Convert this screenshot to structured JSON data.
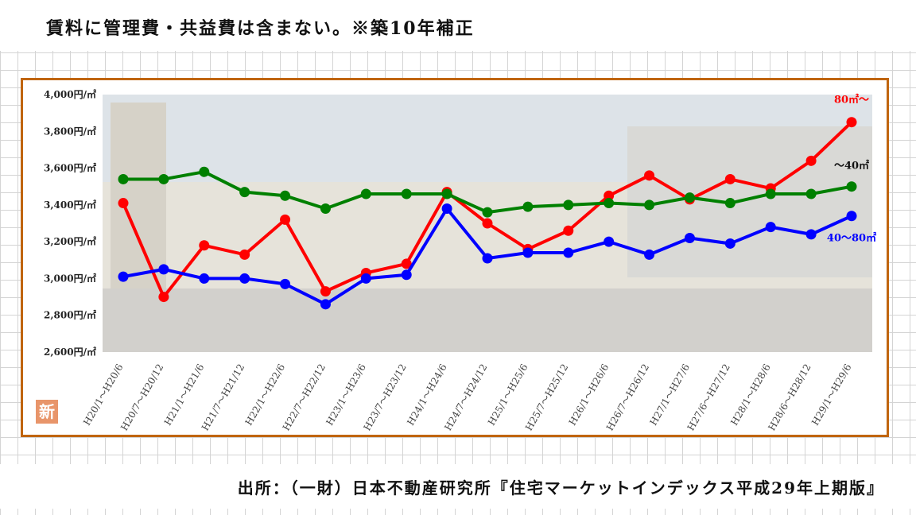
{
  "header": {
    "title": "賃料に管理費・共益費は含まない。※築10年補正"
  },
  "footer": {
    "source": "出所：（一財）日本不動産研究所『住宅マーケットインデックス平成29年上期版』"
  },
  "badge": {
    "text": "新"
  },
  "chart_data": {
    "type": "line",
    "title": "",
    "xlabel": "",
    "ylabel": "",
    "ylim": [
      2600,
      4000
    ],
    "y_ticks": [
      {
        "value": 4000,
        "label": "4,000円/㎡"
      },
      {
        "value": 3800,
        "label": "3,800円/㎡"
      },
      {
        "value": 3600,
        "label": "3,600円/㎡"
      },
      {
        "value": 3400,
        "label": "3,400円/㎡"
      },
      {
        "value": 3200,
        "label": "3,200円/㎡"
      },
      {
        "value": 3000,
        "label": "3,000円/㎡"
      },
      {
        "value": 2800,
        "label": "2,800円/㎡"
      },
      {
        "value": 2600,
        "label": "2,600円/㎡"
      }
    ],
    "categories": [
      "H20/1～H20/6",
      "H20/7～H20/12",
      "H21/1～H21/6",
      "H21/7～H21/12",
      "H22/1～H22/6",
      "H22/7～H22/12",
      "H23/1～H23/6",
      "H23/7～H23/12",
      "H24/1～H24/6",
      "H24/7～H24/12",
      "H25/1～H25/6",
      "H25/7～H25/12",
      "H26/1～H26/6",
      "H26/7～H26/12",
      "H27/1～H27/6",
      "H27/6～H27/12",
      "H28/1～H28/6",
      "H28/6～H28/12",
      "H29/1～H29/6"
    ],
    "series": [
      {
        "name": "80㎡～",
        "color": "#ff0000",
        "values": [
          3410,
          2900,
          3180,
          3130,
          3320,
          2930,
          3030,
          3080,
          3470,
          3300,
          3160,
          3260,
          3450,
          3560,
          3430,
          3540,
          3490,
          3640,
          3850
        ]
      },
      {
        "name": "～40㎡",
        "color": "#008000",
        "values": [
          3540,
          3540,
          3580,
          3470,
          3450,
          3380,
          3460,
          3460,
          3460,
          3360,
          3390,
          3400,
          3410,
          3400,
          3440,
          3410,
          3460,
          3460,
          3500
        ]
      },
      {
        "name": "40～80㎡",
        "color": "#0000ff",
        "values": [
          3010,
          3050,
          3000,
          3000,
          2970,
          2860,
          3000,
          3020,
          3380,
          3110,
          3140,
          3140,
          3200,
          3130,
          3220,
          3190,
          3280,
          3240,
          3340
        ]
      }
    ],
    "grid": false,
    "legend": "inline labels at right end of each series"
  }
}
